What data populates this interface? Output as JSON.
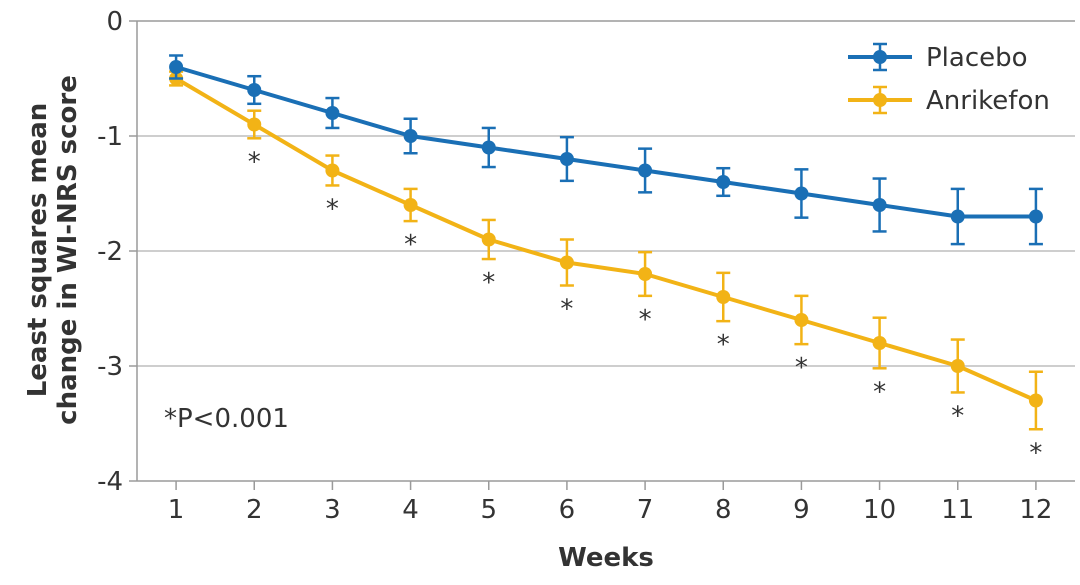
{
  "chart_data": {
    "type": "line",
    "title": "",
    "xlabel": "Weeks",
    "ylabel_lines": [
      "Least squares mean",
      "change in WI-NRS score"
    ],
    "x": [
      1,
      2,
      3,
      4,
      5,
      6,
      7,
      8,
      9,
      10,
      11,
      12
    ],
    "xlim": [
      0.5,
      12.5
    ],
    "ylim": [
      -4,
      0
    ],
    "yticks": [
      0,
      -1,
      -2,
      -3,
      -4
    ],
    "yticklabels": [
      "0",
      "-1",
      "-2",
      "-3",
      "-4"
    ],
    "grid": "horizontal",
    "legend_position": "top-right",
    "series": [
      {
        "name": "Placebo",
        "color": "#1a6fb5",
        "values": [
          -0.4,
          -0.6,
          -0.8,
          -1.0,
          -1.1,
          -1.2,
          -1.3,
          -1.4,
          -1.5,
          -1.6,
          -1.7,
          -1.7
        ],
        "error": [
          0.1,
          0.12,
          0.13,
          0.15,
          0.17,
          0.19,
          0.19,
          0.12,
          0.21,
          0.23,
          0.24,
          0.24
        ]
      },
      {
        "name": "Anrikefon",
        "color": "#f2b316",
        "values": [
          -0.5,
          -0.9,
          -1.3,
          -1.6,
          -1.9,
          -2.1,
          -2.2,
          -2.4,
          -2.6,
          -2.8,
          -3.0,
          -3.3
        ],
        "error": [
          0.06,
          0.12,
          0.13,
          0.14,
          0.17,
          0.2,
          0.19,
          0.21,
          0.21,
          0.22,
          0.23,
          0.25
        ]
      }
    ],
    "significance_marker": "*",
    "significant_x": [
      2,
      3,
      4,
      5,
      6,
      7,
      8,
      9,
      10,
      11,
      12
    ],
    "annotation": "*P<0.001"
  }
}
